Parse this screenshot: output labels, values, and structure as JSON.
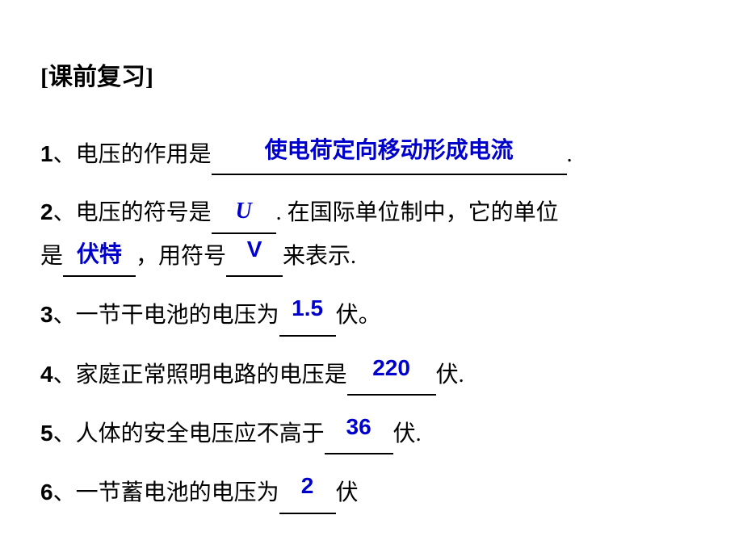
{
  "colors": {
    "text": "#000000",
    "answer": "#0000cc",
    "background": "#ffffff"
  },
  "font_sizes": {
    "heading": 30,
    "body": 28
  },
  "heading": "[课前复习]",
  "q1": {
    "num": "1",
    "text_before": "、电压的作用是",
    "answer": "使电荷定向移动形成电流",
    "text_after": "."
  },
  "q2": {
    "num": "2",
    "line1_before": "、电压的符号是",
    "ans_symbol": "U",
    "line1_after": ". 在国际单位制中，它的单位",
    "line2_before": "是",
    "ans_unit_name": "伏特",
    "line2_mid": "，用符号",
    "ans_unit_symbol": "V",
    "line2_after": "来表示."
  },
  "q3": {
    "num": "3",
    "before": "、一节干电池的电压为",
    "answer": "1.5",
    "after": "伏。"
  },
  "q4": {
    "num": "4",
    "before": "、家庭正常照明电路的电压是",
    "answer": "220",
    "after": "伏."
  },
  "q5": {
    "num": "5",
    "before": "、人体的安全电压应不高于",
    "answer": "36",
    "after": "伏."
  },
  "q6": {
    "num": "6",
    "before": "、一节蓄电池的电压为",
    "answer": "2",
    "after": "伏"
  }
}
